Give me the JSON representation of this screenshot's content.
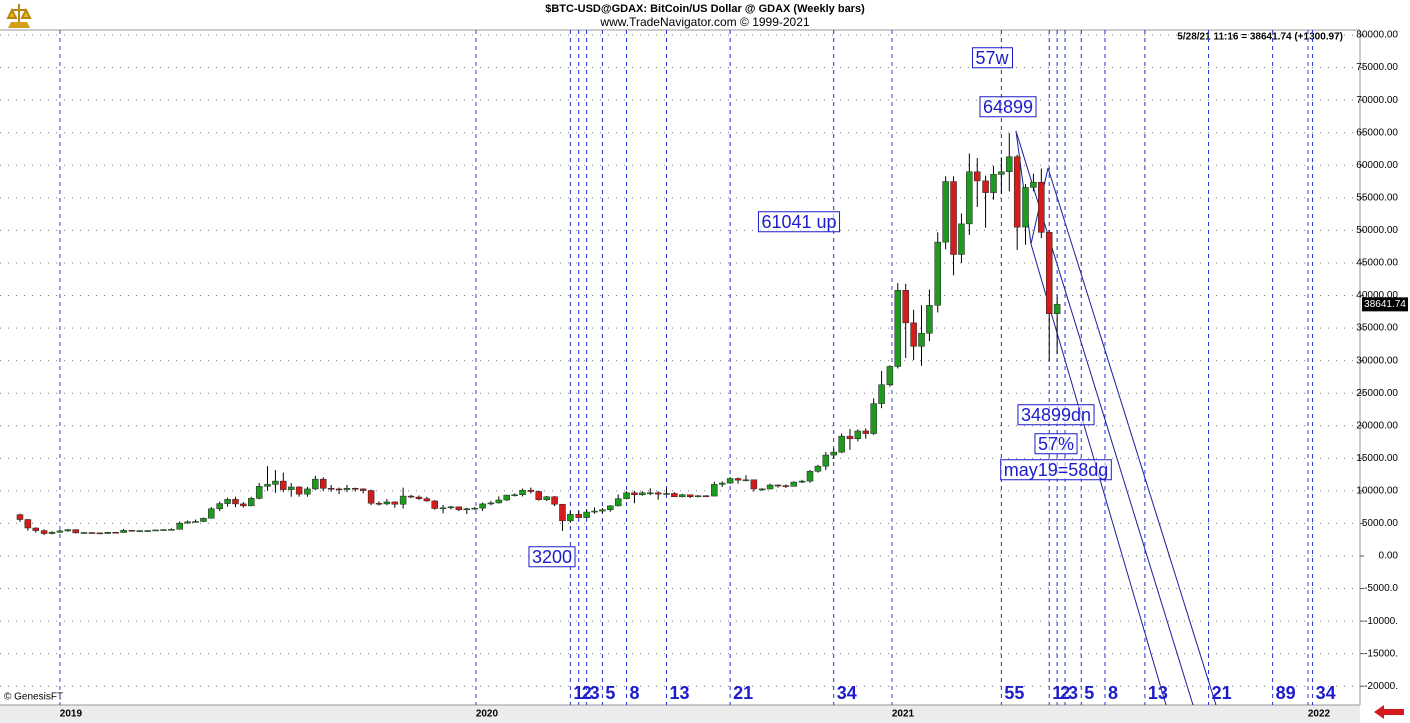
{
  "chart_data": {
    "type": "candlestick",
    "title": "$BTC-USD@GDAX:  BitCoin/US Dollar @ GDAX  (Weekly bars)",
    "subtitle": "www.TradeNavigator.com © 1999-2021",
    "info": "5/28/21 11:16 = 38641.74 (+1300.97)",
    "credit": "© GenesisFT",
    "up_color": "#1e9a1e",
    "down_color": "#d41c1c",
    "grid": true,
    "xlim": [
      2018.856,
      2022.125
    ],
    "xticks": [
      2019,
      2020,
      2021,
      2022
    ],
    "ylim": [
      -22880,
      80770
    ],
    "yticks": [
      {
        "value": -20000,
        "label": "-20000."
      },
      {
        "value": -15000,
        "label": "-15000."
      },
      {
        "value": -10000,
        "label": "-10000."
      },
      {
        "value": -5000,
        "label": "-5000.0"
      },
      {
        "value": 0,
        "label": "0.00"
      },
      {
        "value": 5000,
        "label": "5000.00"
      },
      {
        "value": 10000,
        "label": "10000.00"
      },
      {
        "value": 15000,
        "label": "15000.00"
      },
      {
        "value": 20000,
        "label": "20000.00"
      },
      {
        "value": 25000,
        "label": "25000.00"
      },
      {
        "value": 30000,
        "label": "30000.00"
      },
      {
        "value": 35000,
        "label": "35000.00"
      },
      {
        "value": 40000,
        "label": "40000.00"
      },
      {
        "value": 45000,
        "label": "45000.00"
      },
      {
        "value": 50000,
        "label": "50000.00"
      },
      {
        "value": 55000,
        "label": "55000.00"
      },
      {
        "value": 60000,
        "label": "60000.00"
      },
      {
        "value": 65000,
        "label": "65000.00"
      },
      {
        "value": 70000,
        "label": "70000.00"
      },
      {
        "value": 75000,
        "label": "75000.00"
      },
      {
        "value": 80000,
        "label": "80000.00"
      }
    ],
    "x": [
      2018.904,
      2018.923,
      2018.942,
      2018.962,
      2018.981,
      2019.0,
      2019.019,
      2019.038,
      2019.058,
      2019.077,
      2019.096,
      2019.115,
      2019.134,
      2019.153,
      2019.173,
      2019.192,
      2019.211,
      2019.23,
      2019.249,
      2019.268,
      2019.288,
      2019.307,
      2019.326,
      2019.345,
      2019.364,
      2019.384,
      2019.403,
      2019.422,
      2019.441,
      2019.46,
      2019.479,
      2019.499,
      2019.518,
      2019.537,
      2019.556,
      2019.575,
      2019.595,
      2019.614,
      2019.633,
      2019.652,
      2019.671,
      2019.69,
      2019.71,
      2019.729,
      2019.748,
      2019.767,
      2019.786,
      2019.805,
      2019.825,
      2019.844,
      2019.863,
      2019.882,
      2019.901,
      2019.921,
      2019.94,
      2019.959,
      2019.978,
      2019.997,
      2020.016,
      2020.036,
      2020.055,
      2020.074,
      2020.093,
      2020.112,
      2020.132,
      2020.151,
      2020.17,
      2020.189,
      2020.208,
      2020.227,
      2020.247,
      2020.266,
      2020.285,
      2020.304,
      2020.323,
      2020.342,
      2020.362,
      2020.381,
      2020.4,
      2020.419,
      2020.438,
      2020.458,
      2020.477,
      2020.496,
      2020.515,
      2020.534,
      2020.553,
      2020.573,
      2020.592,
      2020.611,
      2020.63,
      2020.649,
      2020.668,
      2020.688,
      2020.707,
      2020.726,
      2020.745,
      2020.764,
      2020.784,
      2020.803,
      2020.822,
      2020.841,
      2020.86,
      2020.879,
      2020.899,
      2020.918,
      2020.937,
      2020.956,
      2020.975,
      2020.995,
      2021.014,
      2021.033,
      2021.052,
      2021.071,
      2021.09,
      2021.11,
      2021.129,
      2021.148,
      2021.167,
      2021.186,
      2021.205,
      2021.225,
      2021.244,
      2021.263,
      2021.282,
      2021.301,
      2021.321,
      2021.34,
      2021.359,
      2021.378,
      2021.397
    ],
    "open": [
      6350,
      5600,
      4300,
      3900,
      3450,
      3650,
      3850,
      4050,
      3550,
      3600,
      3550,
      3450,
      3650,
      3600,
      3950,
      3850,
      3900,
      3900,
      4000,
      4050,
      4100,
      5050,
      5250,
      5300,
      5800,
      7250,
      8050,
      8700,
      8000,
      7700,
      8850,
      10700,
      11000,
      11500,
      10200,
      10600,
      9500,
      10300,
      11800,
      10400,
      10300,
      10200,
      10400,
      10300,
      10050,
      8100,
      8000,
      8300,
      7950,
      9200,
      9050,
      8800,
      8450,
      7300,
      7400,
      7550,
      7100,
      7250,
      7350,
      8000,
      8150,
      8600,
      9350,
      9400,
      10100,
      9900,
      8650,
      9100,
      7950,
      5400,
      6400,
      5900,
      6750,
      6900,
      7100,
      7700,
      8800,
      9700,
      9400,
      9700,
      9700,
      9500,
      9600,
      9100,
      9400,
      9100,
      9250,
      9200,
      11000,
      11200,
      11900,
      11650,
      11700,
      10300,
      10300,
      10900,
      10800,
      10700,
      11350,
      11500,
      13000,
      13800,
      15500,
      15950,
      18400,
      18000,
      19200,
      18800,
      23400,
      26300,
      29100,
      40800,
      35800,
      32200,
      34200,
      38500,
      48200,
      57500,
      46300,
      51000,
      59000,
      57600,
      55800,
      58600,
      59000,
      61300,
      50500,
      56600,
      57400,
      49700,
      37200
    ],
    "high": [
      6500,
      5700,
      4400,
      4100,
      3800,
      4000,
      4150,
      4100,
      3700,
      3650,
      3600,
      3700,
      3700,
      4150,
      4000,
      3950,
      4000,
      4050,
      4100,
      4250,
      5300,
      5450,
      5600,
      5900,
      7500,
      8350,
      8950,
      9100,
      8300,
      9100,
      11200,
      13800,
      13200,
      12800,
      11200,
      10700,
      10600,
      12300,
      12100,
      10900,
      10500,
      10900,
      10500,
      10400,
      10200,
      8400,
      8750,
      8400,
      10500,
      9400,
      9300,
      9100,
      8600,
      7850,
      7700,
      7600,
      7400,
      7500,
      8200,
      8450,
      9150,
      9400,
      9600,
      10350,
      10500,
      10050,
      9200,
      9200,
      8000,
      6900,
      6950,
      7200,
      7450,
      7350,
      7800,
      9450,
      9950,
      10000,
      9950,
      10400,
      9950,
      10400,
      9800,
      9550,
      9400,
      9350,
      9350,
      11400,
      11450,
      12100,
      12050,
      12400,
      11750,
      10400,
      11100,
      11000,
      11000,
      11450,
      11700,
      13200,
      14000,
      15950,
      16500,
      18800,
      19500,
      19450,
      19600,
      24200,
      28400,
      29300,
      41900,
      41800,
      37800,
      38500,
      40900,
      49700,
      58300,
      58300,
      52600,
      61800,
      61100,
      58400,
      59900,
      61200,
      64899,
      61600,
      57100,
      58700,
      59500,
      50000,
      39800
    ],
    "low": [
      5250,
      3900,
      3600,
      3200,
      3300,
      3550,
      3700,
      3450,
      3450,
      3450,
      3400,
      3400,
      3550,
      3600,
      3750,
      3700,
      3800,
      3850,
      3950,
      4000,
      4100,
      4950,
      5150,
      5200,
      5750,
      6900,
      7600,
      7500,
      7450,
      7650,
      8700,
      10000,
      9700,
      9800,
      9100,
      9100,
      9100,
      10100,
      9950,
      9850,
      9500,
      9800,
      9900,
      9600,
      7800,
      7750,
      7800,
      7400,
      7300,
      8900,
      8600,
      8350,
      7100,
      6550,
      7150,
      6900,
      6450,
      7100,
      6900,
      7800,
      8050,
      8450,
      9150,
      9150,
      9600,
      8500,
      8450,
      7650,
      3858,
      5100,
      5850,
      5850,
      6500,
      6600,
      6800,
      7600,
      8700,
      8100,
      9250,
      9350,
      8650,
      9450,
      9050,
      9000,
      8900,
      9000,
      9050,
      9200,
      10600,
      11100,
      11100,
      11450,
      9900,
      10000,
      10200,
      10500,
      10450,
      10700,
      11200,
      11250,
      12800,
      13200,
      14900,
      15800,
      16300,
      17600,
      18000,
      18600,
      22700,
      26000,
      28800,
      30400,
      30100,
      29200,
      33000,
      37400,
      47100,
      43100,
      45000,
      49300,
      53600,
      50400,
      54700,
      55600,
      56000,
      47000,
      47800,
      56000,
      48800,
      30000,
      31000
    ],
    "close": [
      5600,
      4300,
      3900,
      3450,
      3650,
      3850,
      4050,
      3550,
      3600,
      3550,
      3450,
      3650,
      3600,
      3950,
      3850,
      3900,
      3900,
      4000,
      4050,
      4100,
      5050,
      5250,
      5300,
      5800,
      7250,
      8050,
      8700,
      8000,
      7700,
      8850,
      10700,
      11000,
      11500,
      10200,
      10600,
      9500,
      10300,
      11800,
      10400,
      10300,
      10200,
      10400,
      10300,
      10050,
      8100,
      8000,
      8300,
      7950,
      9200,
      9050,
      8800,
      8450,
      7300,
      7400,
      7550,
      7100,
      7250,
      7350,
      8000,
      8150,
      8600,
      9350,
      9400,
      10100,
      9900,
      8650,
      9100,
      7950,
      5400,
      6400,
      5900,
      6750,
      6900,
      7100,
      7700,
      8800,
      9700,
      9400,
      9700,
      9700,
      9500,
      9600,
      9100,
      9400,
      9100,
      9250,
      9200,
      11000,
      11200,
      11900,
      11650,
      11700,
      10300,
      10300,
      10900,
      10800,
      10700,
      11350,
      11500,
      13000,
      13800,
      15500,
      15950,
      18400,
      18000,
      19200,
      18800,
      23400,
      26300,
      29100,
      40800,
      35800,
      32200,
      34200,
      38500,
      48200,
      57500,
      46300,
      51000,
      59000,
      57600,
      55800,
      58600,
      59000,
      61300,
      50500,
      56600,
      57400,
      49700,
      37200,
      38641.74
    ],
    "annotations": [
      "57w",
      "61041 up",
      "34899dn",
      "57%",
      "may19=58dg"
    ],
    "time_lines": [
      {
        "x": 2020.227,
        "weeks": 1
      },
      {
        "x": 2020.247,
        "weeks": 2
      },
      {
        "x": 2020.266,
        "weeks": 3
      },
      {
        "x": 2020.304,
        "weeks": 5
      },
      {
        "x": 2020.362,
        "weeks": 8
      },
      {
        "x": 2020.458,
        "weeks": 13
      },
      {
        "x": 2020.611,
        "weeks": 21
      },
      {
        "x": 2020.86,
        "weeks": 34
      },
      {
        "x": 2021.263,
        "weeks": 55
      },
      {
        "x": 2021.378,
        "weeks": 1
      },
      {
        "x": 2021.397,
        "weeks": 2
      },
      {
        "x": 2021.416,
        "weeks": 3
      },
      {
        "x": 2021.455,
        "weeks": 5
      },
      {
        "x": 2021.512,
        "weeks": 8
      },
      {
        "x": 2021.608,
        "weeks": 13
      },
      {
        "x": 2021.761,
        "weeks": 21
      },
      {
        "x": 2021.915,
        "weeks": 89
      },
      {
        "x": 2022.011,
        "weeks": 34
      }
    ]
  }
}
